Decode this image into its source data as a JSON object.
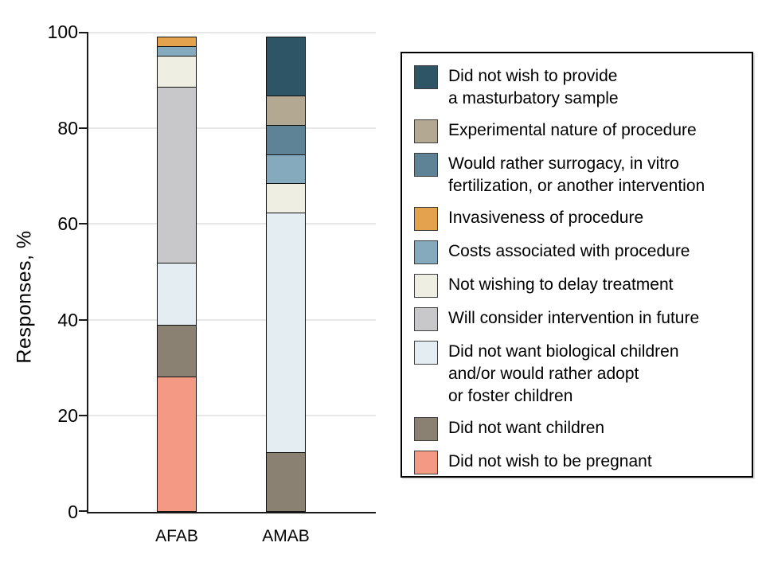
{
  "chart_data": {
    "type": "bar",
    "subtype": "stacked-percentage",
    "title": "",
    "xlabel": "",
    "ylabel": "Responses, %",
    "ylim": [
      0,
      100
    ],
    "yticks": [
      0,
      20,
      40,
      60,
      80,
      100
    ],
    "grid": true,
    "legend_position": "right",
    "categories": [
      "AFAB",
      "AMAB"
    ],
    "series": [
      {
        "name": "Did not wish to provide a masturbatory sample",
        "lines": [
          "Did not wish to provide",
          "a masturbatory sample"
        ],
        "color": "#2E5565",
        "values": [
          0,
          12.5
        ]
      },
      {
        "name": "Experimental nature of procedure",
        "lines": [
          "Experimental nature of procedure"
        ],
        "color": "#B3A892",
        "values": [
          0,
          6.25
        ]
      },
      {
        "name": "Would rather surrogacy, in vitro fertilization, or another intervention",
        "lines": [
          "Would rather surrogacy, in vitro",
          "fertilization, or another intervention"
        ],
        "color": "#5E8396",
        "values": [
          0,
          6.25
        ]
      },
      {
        "name": "Invasiveness of procedure",
        "lines": [
          "Invasiveness of procedure"
        ],
        "color": "#E5A24E",
        "values": [
          2.17,
          0
        ]
      },
      {
        "name": "Costs associated with procedure",
        "lines": [
          "Costs associated with procedure"
        ],
        "color": "#85A9BD",
        "values": [
          2.17,
          6.25
        ]
      },
      {
        "name": "Not wishing to delay treatment",
        "lines": [
          "Not wishing to delay treatment"
        ],
        "color": "#EFEEE2",
        "values": [
          6.52,
          6.25
        ]
      },
      {
        "name": "Will consider intervention in future",
        "lines": [
          "Will consider intervention in future"
        ],
        "color": "#C8C8CB",
        "values": [
          36.96,
          0
        ]
      },
      {
        "name": "Did not want biological children and/or would rather adopt or foster children",
        "lines": [
          "Did not want biological children",
          "and/or would rather adopt",
          "or foster children"
        ],
        "color": "#E4EDF2",
        "values": [
          13.04,
          50
        ]
      },
      {
        "name": "Did not want children",
        "lines": [
          "Did not want children"
        ],
        "color": "#8A8172",
        "values": [
          10.87,
          12.5
        ]
      },
      {
        "name": "Did not wish to be pregnant",
        "lines": [
          "Did not wish to be pregnant"
        ],
        "color": "#F49A84",
        "values": [
          28.26,
          0
        ]
      }
    ]
  }
}
